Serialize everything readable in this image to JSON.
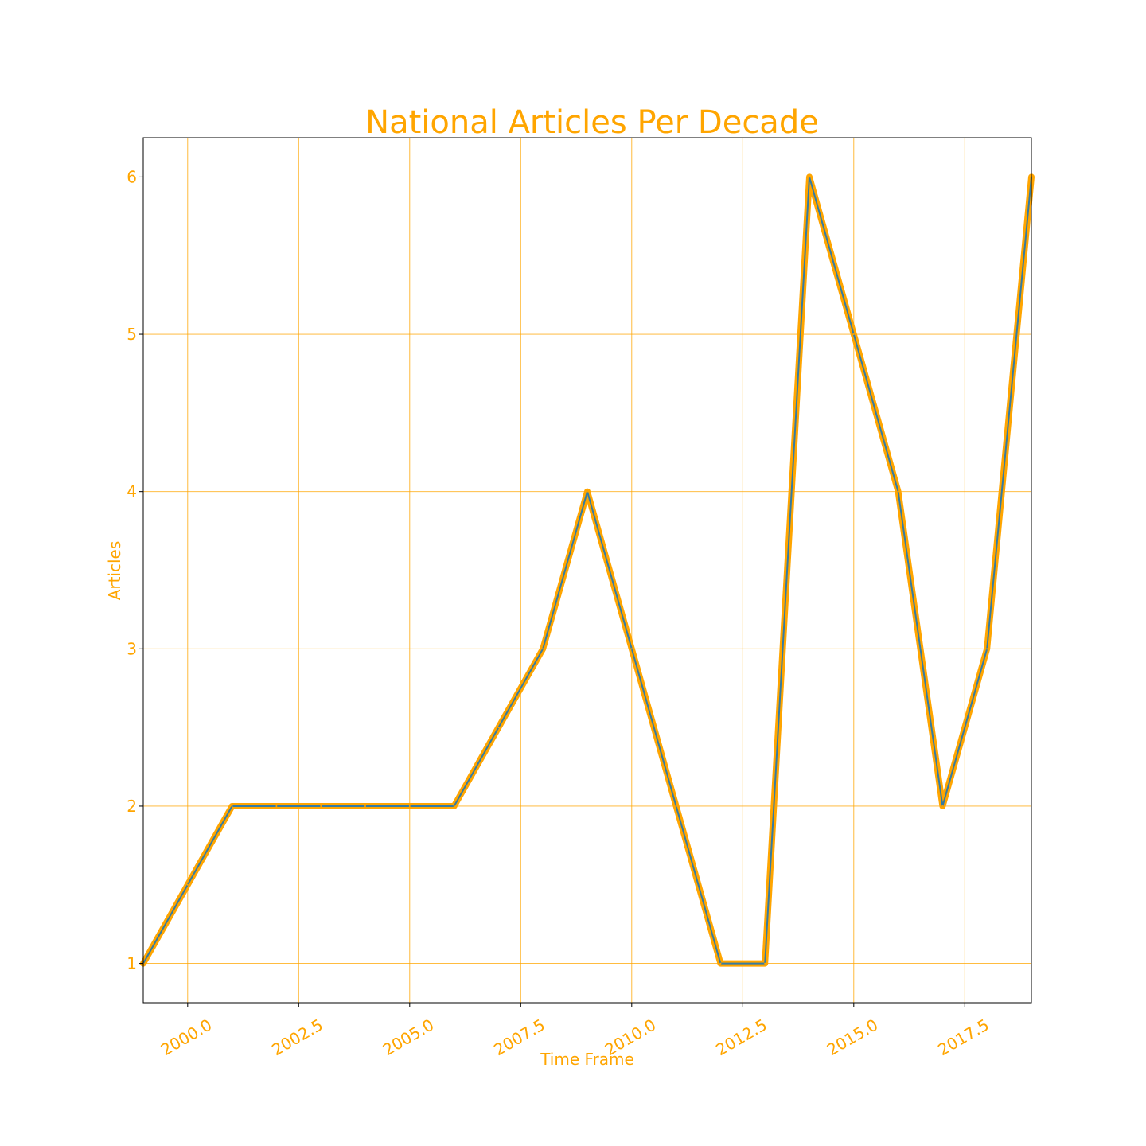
{
  "chart_data": {
    "type": "line",
    "title": "National Articles Per Decade",
    "xlabel": "Time Frame",
    "ylabel": "Articles",
    "x": [
      1999,
      2000,
      2001,
      2002,
      2003,
      2004,
      2005,
      2006,
      2007,
      2008,
      2009,
      2010,
      2011,
      2012,
      2013,
      2014,
      2015,
      2016,
      2017,
      2018,
      2019
    ],
    "series": [
      {
        "values": [
          1,
          1.5,
          2,
          2,
          2,
          2,
          2,
          2,
          2.5,
          3,
          4,
          3,
          2,
          1,
          1,
          6,
          5,
          4,
          2,
          3,
          6
        ]
      }
    ],
    "xlim": [
      1999,
      2019
    ],
    "ylim": [
      0.75,
      6.25
    ],
    "xticks": [
      "2000.0",
      "2002.5",
      "2005.0",
      "2007.5",
      "2010.0",
      "2012.5",
      "2015.0",
      "2017.5"
    ],
    "xtick_values": [
      2000,
      2002.5,
      2005,
      2007.5,
      2010,
      2012.5,
      2015,
      2017.5
    ],
    "yticks": [
      "1",
      "2",
      "3",
      "4",
      "5",
      "6"
    ],
    "ytick_values": [
      1,
      2,
      3,
      4,
      5,
      6
    ],
    "xtick_rotation_deg": -30,
    "grid": true,
    "legend": "none",
    "colors": {
      "accent": "#ffa500",
      "inner_line": "#1f77b4",
      "frame": "#000000"
    }
  }
}
